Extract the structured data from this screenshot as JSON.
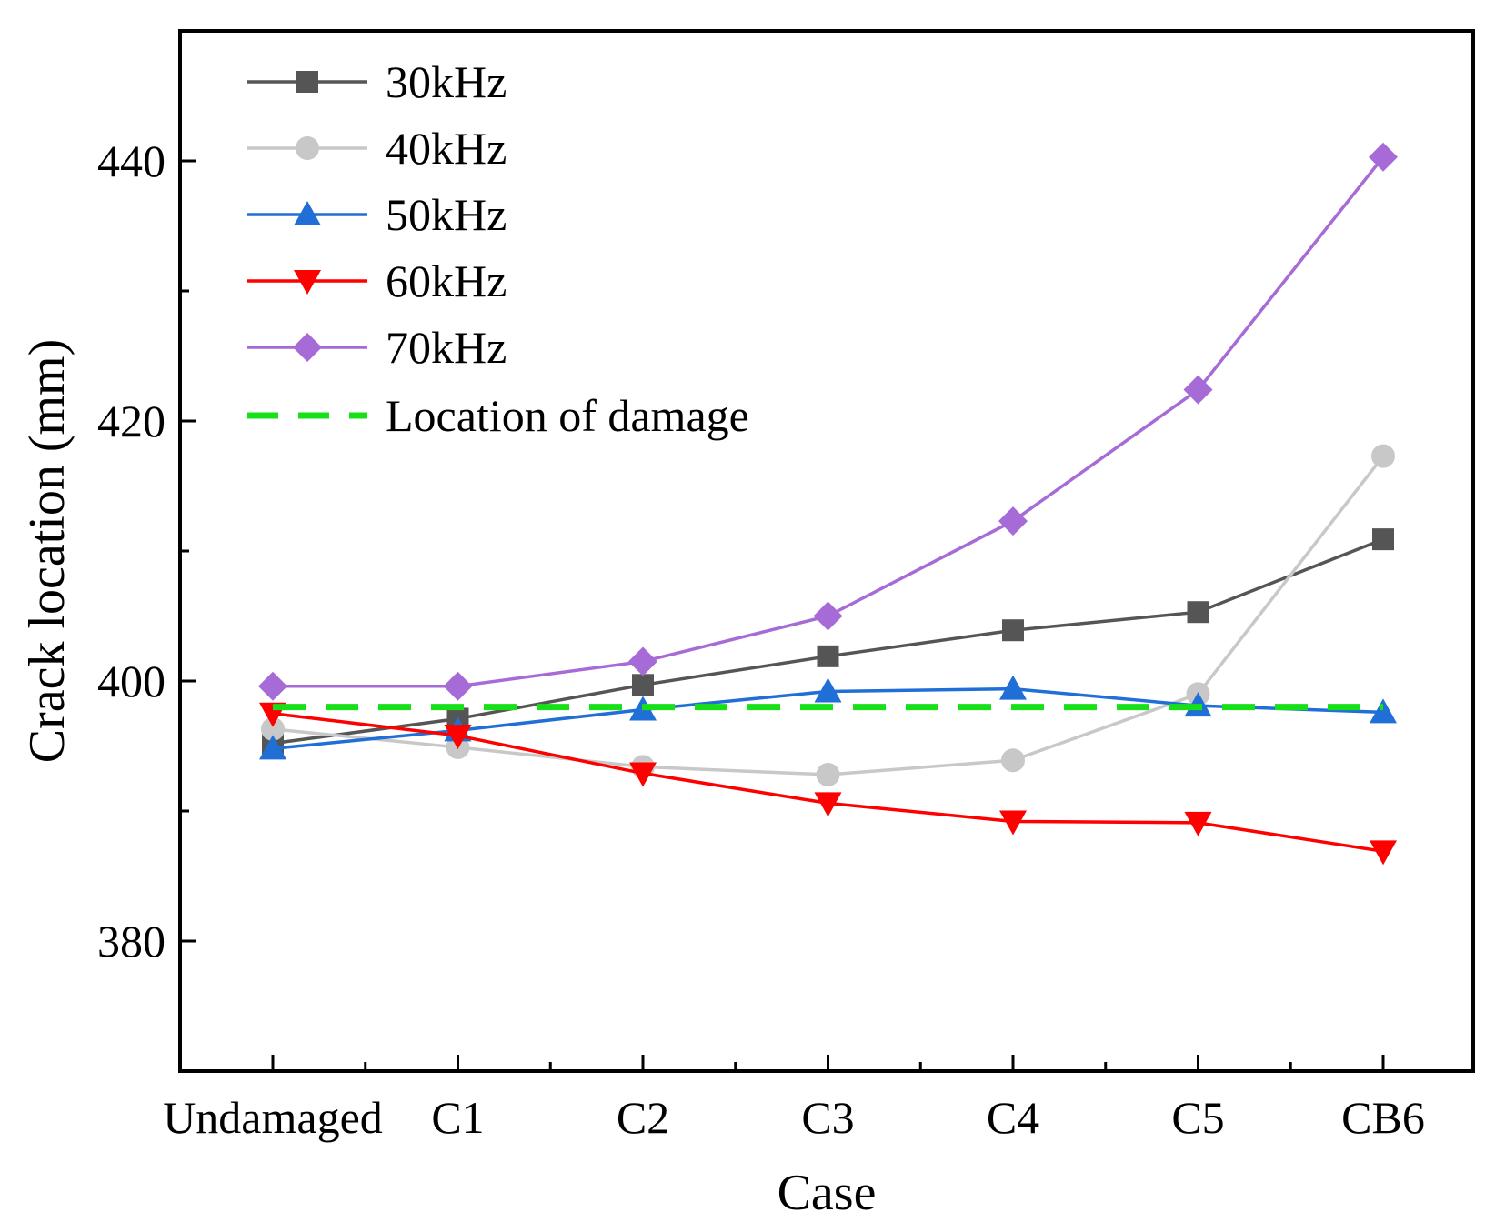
{
  "chart_data": {
    "type": "line",
    "title": "",
    "xlabel": "Case",
    "ylabel": "Crack location (mm)",
    "categories": [
      "Undamaged",
      "C1",
      "C2",
      "C3",
      "C4",
      "C5",
      "CB6"
    ],
    "ylim": [
      370,
      450
    ],
    "yticks": [
      380,
      400,
      420,
      440
    ],
    "legend_position": "top-left",
    "series": [
      {
        "name": "30kHz",
        "color": "#555555",
        "marker": "square",
        "values": [
          395.2,
          397.1,
          399.7,
          401.9,
          403.9,
          405.3,
          410.9
        ]
      },
      {
        "name": "40kHz",
        "color": "#c8c8c8",
        "marker": "circle",
        "values": [
          396.3,
          394.9,
          393.4,
          392.8,
          393.9,
          399.0,
          417.3
        ]
      },
      {
        "name": "50kHz",
        "color": "#1f6fd6",
        "marker": "triangle-up",
        "values": [
          394.8,
          396.2,
          397.8,
          399.2,
          399.4,
          398.1,
          397.6
        ]
      },
      {
        "name": "60kHz",
        "color": "#ff0000",
        "marker": "triangle-down",
        "values": [
          397.5,
          395.8,
          392.9,
          390.6,
          389.2,
          389.1,
          386.9
        ]
      },
      {
        "name": "70kHz",
        "color": "#a66bd6",
        "marker": "diamond",
        "values": [
          399.6,
          399.6,
          401.5,
          405.0,
          412.3,
          422.4,
          440.3
        ]
      }
    ],
    "reference_line": {
      "name": "Location of damage",
      "value": 398,
      "color": "#18e018",
      "style": "dashed"
    }
  }
}
